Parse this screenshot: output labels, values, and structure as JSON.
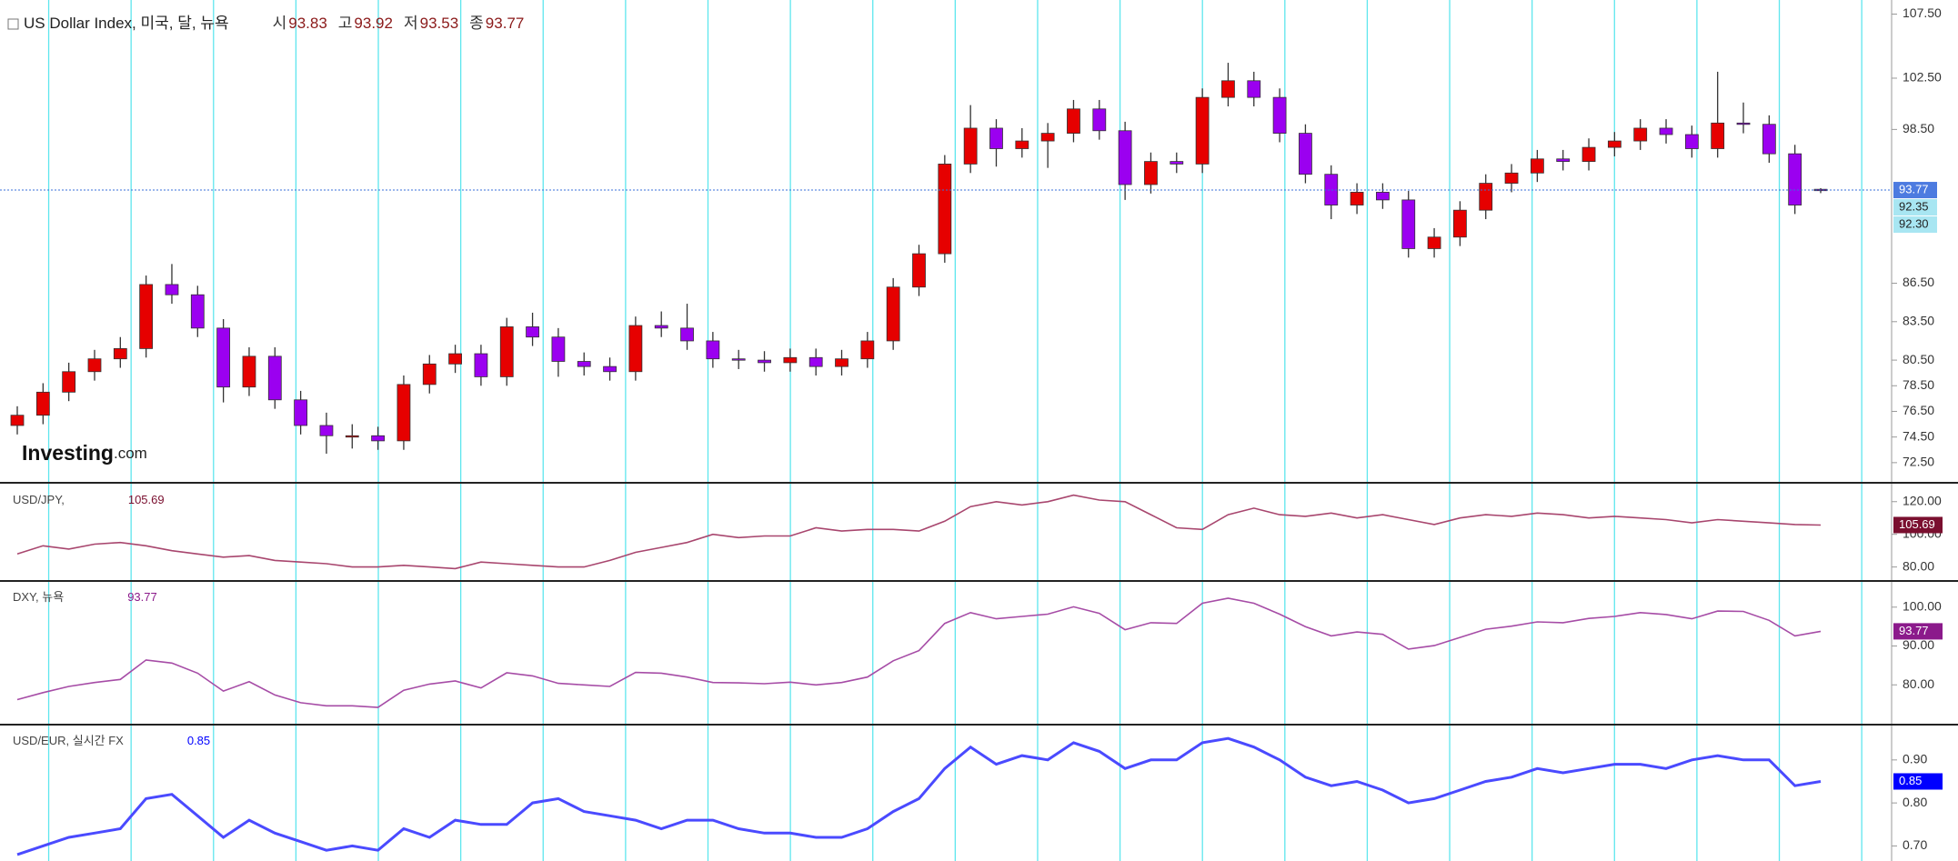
{
  "chart_data": [
    {
      "type": "candlestick",
      "title": "US Dollar Index, 미국, 달, 뉴욕",
      "ohlc_labels": [
        "시",
        "고",
        "저",
        "종"
      ],
      "open": [
        75.4,
        76.2,
        78.0,
        79.6,
        80.6,
        81.4,
        86.4,
        85.6,
        83.0,
        78.4,
        80.8,
        77.4,
        75.4,
        74.6,
        74.6,
        74.2,
        78.6,
        80.2,
        81.0,
        79.2,
        83.1,
        82.3,
        80.4,
        80.0,
        79.6,
        83.2,
        83.0,
        82.0,
        80.6,
        80.5,
        80.3,
        80.7,
        80.0,
        80.6,
        82.0,
        86.2,
        88.8,
        95.8,
        98.6,
        97.0,
        97.6,
        98.2,
        100.1,
        98.4,
        94.2,
        96.0,
        95.8,
        101.0,
        102.3,
        101.0,
        98.2,
        95.0,
        92.6,
        93.6,
        93.0,
        89.2,
        90.1,
        92.2,
        94.3,
        95.1,
        96.2,
        96.0,
        97.1,
        97.6,
        98.6,
        98.1,
        97.0,
        99.0,
        98.9,
        96.6,
        93.83
      ],
      "high": [
        76.9,
        78.7,
        80.3,
        81.3,
        82.3,
        87.1,
        88.0,
        86.3,
        83.7,
        81.5,
        81.5,
        78.1,
        76.4,
        75.5,
        75.3,
        79.3,
        80.9,
        81.7,
        81.7,
        83.8,
        84.2,
        83.0,
        81.1,
        80.7,
        83.9,
        84.3,
        84.9,
        82.7,
        81.3,
        81.2,
        81.4,
        81.4,
        81.3,
        82.7,
        86.9,
        89.5,
        96.5,
        100.4,
        99.3,
        98.6,
        99.0,
        100.8,
        100.8,
        99.1,
        96.7,
        96.7,
        101.7,
        103.7,
        103.0,
        101.7,
        98.9,
        95.7,
        94.3,
        94.3,
        93.7,
        90.8,
        92.9,
        95.0,
        95.8,
        96.9,
        96.9,
        97.8,
        98.3,
        99.3,
        99.3,
        98.8,
        103.0,
        100.6,
        99.6,
        97.3,
        93.92
      ],
      "low": [
        74.7,
        75.5,
        77.3,
        78.9,
        79.9,
        80.7,
        84.9,
        82.3,
        77.2,
        77.7,
        76.7,
        74.7,
        73.2,
        73.6,
        73.5,
        73.5,
        77.9,
        79.5,
        78.5,
        78.5,
        81.6,
        79.2,
        79.3,
        78.9,
        78.9,
        82.3,
        81.3,
        79.9,
        79.8,
        79.6,
        79.6,
        79.3,
        79.3,
        79.9,
        81.3,
        85.5,
        88.1,
        95.1,
        95.6,
        96.3,
        95.5,
        97.5,
        97.7,
        93.0,
        93.5,
        95.1,
        95.1,
        100.3,
        100.3,
        97.5,
        94.3,
        91.5,
        91.9,
        92.3,
        88.5,
        88.5,
        89.4,
        91.5,
        93.6,
        94.4,
        95.3,
        95.3,
        96.4,
        96.9,
        97.4,
        96.3,
        96.3,
        98.2,
        95.9,
        91.9,
        93.53
      ],
      "close": [
        76.2,
        78.0,
        79.6,
        80.6,
        81.4,
        86.4,
        85.6,
        83.0,
        78.4,
        80.8,
        77.4,
        75.4,
        74.6,
        74.6,
        74.2,
        78.6,
        80.2,
        81.0,
        79.2,
        83.1,
        82.3,
        80.4,
        80.0,
        79.6,
        83.2,
        83.0,
        82.0,
        80.6,
        80.5,
        80.3,
        80.7,
        80.0,
        80.6,
        82.0,
        86.2,
        88.8,
        95.8,
        98.6,
        97.0,
        97.6,
        98.2,
        100.1,
        98.4,
        94.2,
        96.0,
        95.8,
        101.0,
        102.3,
        101.0,
        98.2,
        95.0,
        92.6,
        93.6,
        93.0,
        89.2,
        90.1,
        92.2,
        94.3,
        95.1,
        96.2,
        96.0,
        97.1,
        97.6,
        98.6,
        98.1,
        97.0,
        99.0,
        98.9,
        96.6,
        92.6,
        93.77
      ],
      "up_color": "#e60000",
      "down_color": "#9b00f0",
      "last_color": "#4d7be0",
      "mark_color": "#a8e6f2",
      "ylim": [
        71.0,
        108.6
      ],
      "yticks": [
        {
          "value": 107.5,
          "label": "107.50"
        },
        {
          "value": 102.5,
          "label": "102.50"
        },
        {
          "value": 98.5,
          "label": "98.50"
        },
        {
          "value": 86.5,
          "label": "86.50"
        },
        {
          "value": 83.5,
          "label": "83.50"
        },
        {
          "value": 80.5,
          "label": "80.50"
        },
        {
          "value": 78.5,
          "label": "78.50"
        },
        {
          "value": 76.5,
          "label": "76.50"
        },
        {
          "value": 74.5,
          "label": "74.50"
        },
        {
          "value": 72.5,
          "label": "72.50"
        }
      ],
      "price_marks": [
        92.35,
        {
          "value": 92.3,
          "label": "92.30"
        }
      ],
      "logo": "Investing",
      "logo_suffix": ".com"
    },
    {
      "type": "line",
      "name": "USD/JPY,",
      "color": "#a8466e",
      "label_color": "#7a0f2f",
      "values": [
        88,
        93,
        91,
        94,
        95,
        93,
        90,
        88,
        86,
        87,
        84,
        83,
        82,
        80,
        80,
        81,
        80,
        79,
        83,
        82,
        81,
        80,
        80,
        84,
        89,
        92,
        95,
        100,
        98,
        99,
        99,
        104,
        102,
        103,
        103,
        102,
        108,
        117,
        120,
        118,
        120,
        124,
        121,
        120,
        112,
        104,
        103,
        112,
        116,
        112,
        111,
        113,
        110,
        112,
        109,
        106,
        110,
        112,
        111,
        113,
        112,
        110,
        111,
        110,
        109,
        107,
        109,
        108,
        107,
        106,
        105.69
      ],
      "ylim": [
        72,
        131
      ],
      "yticks": [
        {
          "value": 120,
          "label": "120.00"
        },
        {
          "value": 100,
          "label": "100.00"
        },
        {
          "value": 80,
          "label": "80.00"
        }
      ]
    },
    {
      "type": "line",
      "name": "DXY, 뉴욕",
      "color": "#a64ca6",
      "label_color": "#8b1a8b",
      "ylim": [
        70,
        106.5
      ],
      "yticks": [
        {
          "value": 100,
          "label": "100.00"
        },
        {
          "value": 90,
          "label": "90.00"
        },
        {
          "value": 80,
          "label": "80.00"
        }
      ]
    },
    {
      "type": "line",
      "name": "USD/EUR, 실시간 FX",
      "color": "#4a4aff",
      "label_color": "#0000ff",
      "values": [
        0.68,
        0.7,
        0.72,
        0.73,
        0.74,
        0.81,
        0.82,
        0.77,
        0.72,
        0.76,
        0.73,
        0.71,
        0.69,
        0.7,
        0.69,
        0.74,
        0.72,
        0.76,
        0.75,
        0.75,
        0.8,
        0.81,
        0.78,
        0.77,
        0.76,
        0.74,
        0.76,
        0.76,
        0.74,
        0.73,
        0.73,
        0.72,
        0.72,
        0.74,
        0.78,
        0.81,
        0.88,
        0.93,
        0.89,
        0.91,
        0.9,
        0.94,
        0.92,
        0.88,
        0.9,
        0.9,
        0.94,
        0.95,
        0.93,
        0.9,
        0.86,
        0.84,
        0.85,
        0.83,
        0.8,
        0.81,
        0.83,
        0.85,
        0.86,
        0.88,
        0.87,
        0.88,
        0.89,
        0.89,
        0.88,
        0.9,
        0.91,
        0.9,
        0.9,
        0.84,
        0.85
      ],
      "ylim": [
        0.665,
        0.98
      ],
      "yticks": [
        {
          "value": 0.9,
          "label": "0.90"
        },
        {
          "value": 0.8,
          "label": "0.80"
        },
        {
          "value": 0.7,
          "label": "0.70"
        }
      ]
    }
  ]
}
